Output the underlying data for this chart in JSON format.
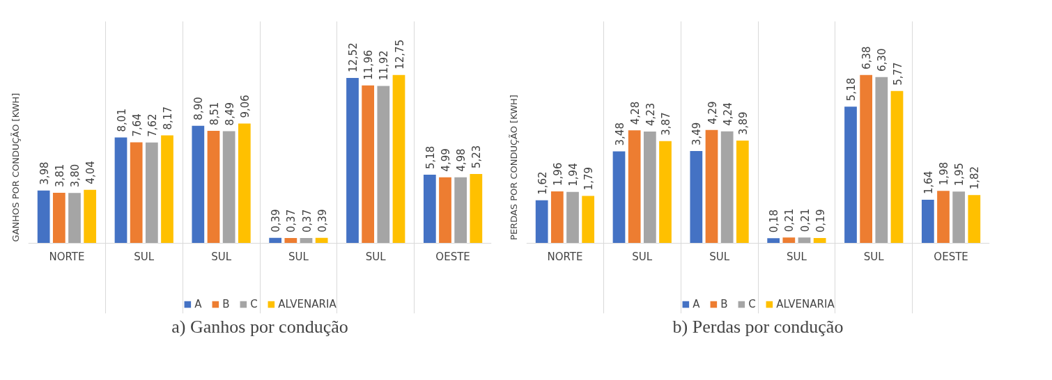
{
  "chart_data": [
    {
      "type": "bar",
      "title": "a) Ganhos por condução",
      "ylabel": "GANHOS POR CONDUÇÃO [KWH]",
      "categories": [
        "NORTE",
        "SUL",
        "SUL",
        "SUL",
        "SUL",
        "OESTE"
      ],
      "grid": "x",
      "legend": "bottom",
      "series": [
        {
          "name": "A",
          "color": "#4472c4",
          "values": [
            3.98,
            8.01,
            8.9,
            0.39,
            12.52,
            5.18
          ],
          "value_labels": [
            "3,98",
            "8,01",
            "8,90",
            "0,39",
            "12,52",
            "5,18"
          ]
        },
        {
          "name": "B",
          "color": "#ed7d31",
          "values": [
            3.81,
            7.64,
            8.51,
            0.37,
            11.96,
            4.99
          ],
          "value_labels": [
            "3,81",
            "7,64",
            "8,51",
            "0,37",
            "11,96",
            "4,99"
          ]
        },
        {
          "name": "C",
          "color": "#a5a5a5",
          "values": [
            3.8,
            7.62,
            8.49,
            0.37,
            11.92,
            4.98
          ],
          "value_labels": [
            "3,80",
            "7,62",
            "8,49",
            "0,37",
            "11,92",
            "4,98"
          ]
        },
        {
          "name": "ALVENARIA",
          "color": "#ffc000",
          "values": [
            4.04,
            8.17,
            9.06,
            0.39,
            12.75,
            5.23
          ],
          "value_labels": [
            "4,04",
            "8,17",
            "9,06",
            "0,39",
            "12,75",
            "5,23"
          ]
        }
      ]
    },
    {
      "type": "bar",
      "title": "b) Perdas por condução",
      "ylabel": "PERDAS POR CONDUÇÃO [KWH]",
      "categories": [
        "NORTE",
        "SUL",
        "SUL",
        "SUL",
        "SUL",
        "OESTE"
      ],
      "grid": "x",
      "legend": "bottom",
      "series": [
        {
          "name": "A",
          "color": "#4472c4",
          "values": [
            1.62,
            3.48,
            3.49,
            0.18,
            5.18,
            1.64
          ],
          "value_labels": [
            "1,62",
            "3,48",
            "3,49",
            "0,18",
            "5,18",
            "1,64"
          ]
        },
        {
          "name": "B",
          "color": "#ed7d31",
          "values": [
            1.96,
            4.28,
            4.29,
            0.21,
            6.38,
            1.98
          ],
          "value_labels": [
            "1,96",
            "4,28",
            "4,29",
            "0,21",
            "6,38",
            "1,98"
          ]
        },
        {
          "name": "C",
          "color": "#a5a5a5",
          "values": [
            1.94,
            4.23,
            4.24,
            0.21,
            6.3,
            1.95
          ],
          "value_labels": [
            "1,94",
            "4,23",
            "4,24",
            "0,21",
            "6,30",
            "1,95"
          ]
        },
        {
          "name": "ALVENARIA",
          "color": "#ffc000",
          "values": [
            1.79,
            3.87,
            3.89,
            0.19,
            5.77,
            1.82
          ],
          "value_labels": [
            "1,79",
            "3,87",
            "3,89",
            "0,19",
            "5,77",
            "1,82"
          ]
        }
      ]
    }
  ]
}
